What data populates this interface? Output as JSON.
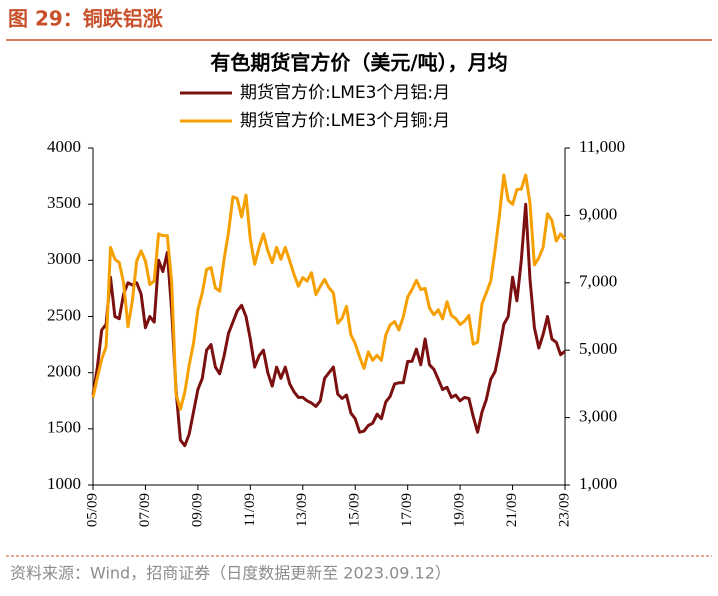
{
  "header": {
    "title": "图 29：铜跌铝涨"
  },
  "footer": {
    "source": "资料来源：Wind，招商证券（日度数据更新至 2023.09.12）"
  },
  "chart_data": {
    "type": "line",
    "title": "有色期货官方价（美元/吨），月均",
    "categories": [
      "05/09",
      null,
      null,
      null,
      null,
      null,
      null,
      null,
      null,
      null,
      null,
      null,
      "07/09",
      null,
      null,
      null,
      null,
      null,
      null,
      null,
      null,
      null,
      null,
      null,
      "09/09",
      null,
      null,
      null,
      null,
      null,
      null,
      null,
      null,
      null,
      null,
      null,
      "11/09",
      null,
      null,
      null,
      null,
      null,
      null,
      null,
      null,
      null,
      null,
      null,
      "13/09",
      null,
      null,
      null,
      null,
      null,
      null,
      null,
      null,
      null,
      null,
      null,
      "15/09",
      null,
      null,
      null,
      null,
      null,
      null,
      null,
      null,
      null,
      null,
      null,
      "17/09",
      null,
      null,
      null,
      null,
      null,
      null,
      null,
      null,
      null,
      null,
      null,
      "19/09",
      null,
      null,
      null,
      null,
      null,
      null,
      null,
      null,
      null,
      null,
      null,
      "21/09",
      null,
      null,
      null,
      null,
      null,
      null,
      null,
      null,
      null,
      null,
      null,
      "23/09"
    ],
    "series": [
      {
        "name": "期货官方价:LME3个月铝:月",
        "color": "#7b1010",
        "axis": "y",
        "values": [
          1800,
          2050,
          2380,
          2430,
          2850,
          2500,
          2480,
          2700,
          2800,
          2780,
          2800,
          2700,
          2400,
          2500,
          2450,
          3000,
          2900,
          3070,
          2550,
          1850,
          1400,
          1350,
          1450,
          1650,
          1850,
          1950,
          2200,
          2250,
          2050,
          1990,
          2150,
          2350,
          2450,
          2550,
          2600,
          2500,
          2300,
          2050,
          2150,
          2200,
          2000,
          1880,
          2050,
          1950,
          2050,
          1900,
          1830,
          1780,
          1780,
          1750,
          1730,
          1700,
          1750,
          1950,
          2000,
          2050,
          1810,
          1770,
          1800,
          1640,
          1590,
          1470,
          1480,
          1530,
          1550,
          1630,
          1590,
          1740,
          1790,
          1900,
          1910,
          1910,
          2100,
          2100,
          2210,
          2070,
          2300,
          2070,
          2030,
          1940,
          1850,
          1870,
          1780,
          1800,
          1750,
          1780,
          1770,
          1610,
          1470,
          1650,
          1760,
          1940,
          2010,
          2200,
          2430,
          2500,
          2850,
          2640,
          3000,
          3500,
          2830,
          2400,
          2220,
          2340,
          2500,
          2300,
          2270,
          2160,
          2190
        ]
      },
      {
        "name": "期货官方价:LME3个月铜:月",
        "color": "#f5a000",
        "axis": "y2",
        "values": [
          3600,
          4200,
          4730,
          5100,
          8050,
          7700,
          7600,
          7000,
          5700,
          6450,
          7650,
          7950,
          7650,
          6950,
          7050,
          8450,
          8400,
          8400,
          7000,
          3700,
          3250,
          3750,
          4550,
          5200,
          6200,
          6700,
          7400,
          7450,
          6850,
          6750,
          7700,
          8500,
          9550,
          9500,
          8950,
          9600,
          8300,
          7550,
          8050,
          8450,
          7950,
          7600,
          8050,
          7700,
          8050,
          7650,
          7250,
          6900,
          7150,
          7050,
          7300,
          6650,
          6900,
          7100,
          6850,
          6700,
          5800,
          5950,
          6300,
          5450,
          5200,
          4800,
          4460,
          4950,
          4700,
          4850,
          4700,
          5450,
          5750,
          5850,
          5600,
          5990,
          6580,
          6800,
          7070,
          6800,
          6830,
          6250,
          6050,
          6200,
          5930,
          6440,
          6030,
          5940,
          5760,
          5860,
          6030,
          5180,
          5240,
          6380,
          6700,
          7050,
          7970,
          9000,
          10200,
          9450,
          9330,
          9770,
          9780,
          10200,
          9360,
          7530,
          7740,
          8050,
          9050,
          8850,
          8240,
          8450,
          8300
        ]
      }
    ],
    "ylim": [
      1000,
      4000
    ],
    "yticks": [
      1000,
      1500,
      2000,
      2500,
      3000,
      3500,
      4000
    ],
    "y2lim": [
      1000,
      11000
    ],
    "y2ticks": [
      {
        "value": 1000,
        "label": "1,000"
      },
      {
        "value": 3000,
        "label": "3,000"
      },
      {
        "value": 5000,
        "label": "5,000"
      },
      {
        "value": 7000,
        "label": "7,000"
      },
      {
        "value": 9000,
        "label": "9,000"
      },
      {
        "value": 11000,
        "label": "11,000"
      }
    ],
    "grid": false,
    "legend": "top"
  }
}
